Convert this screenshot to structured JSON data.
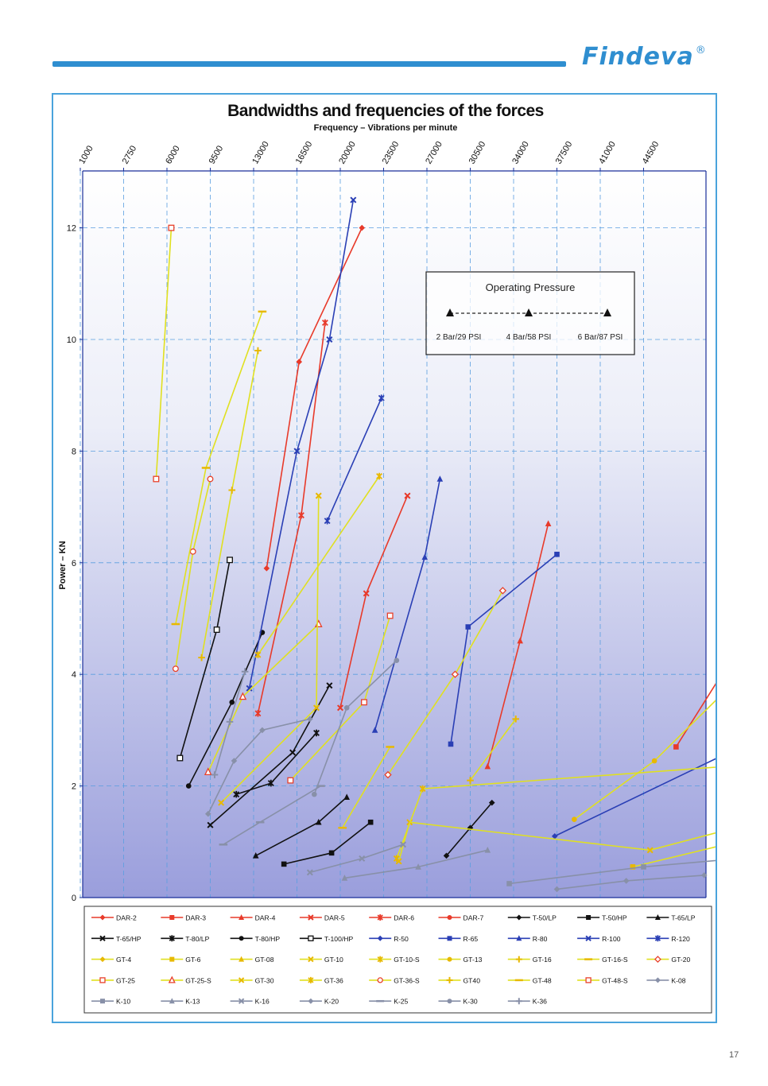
{
  "brand": {
    "name": "Findeva",
    "registered": "®"
  },
  "page_number": "17",
  "chart_data": {
    "type": "line",
    "title": "Bandwidths and frequencies of the forces",
    "xlabel": "Frequency – Vibrations per minute",
    "ylabel": "Power – KN",
    "x_ticks": [
      1000,
      2750,
      6000,
      9500,
      13000,
      16500,
      20000,
      23500,
      27000,
      30500,
      34000,
      37500,
      41000,
      44500
    ],
    "y_ticks": [
      0,
      2,
      4,
      6,
      8,
      10,
      12
    ],
    "ylim": [
      0,
      13
    ],
    "grid": true,
    "legend_position": "bottom",
    "inset_legend": {
      "title": "Operating Pressure",
      "labels": [
        "2 Bar/29 PSI",
        "4 Bar/58 PSI",
        "6 Bar/87 PSI"
      ]
    },
    "series": [
      {
        "name": "DAR-2",
        "color": "#e83a2a",
        "marker": "diamond",
        "points": [
          [
            4.3,
            5.9
          ],
          [
            5.05,
            9.6
          ],
          [
            6.5,
            12.0
          ]
        ]
      },
      {
        "name": "DAR-3",
        "color": "#e83a2a",
        "marker": "square",
        "points": [
          [
            13.75,
            2.7
          ],
          [
            15.25,
            4.55
          ],
          [
            15.45,
            6.05
          ]
        ]
      },
      {
        "name": "DAR-4",
        "color": "#e83a2a",
        "marker": "triangle",
        "points": [
          [
            9.4,
            2.35
          ],
          [
            10.15,
            4.6
          ],
          [
            10.8,
            6.7
          ]
        ]
      },
      {
        "name": "DAR-5",
        "color": "#e83a2a",
        "marker": "x",
        "points": [
          [
            6.0,
            3.4
          ],
          [
            6.6,
            5.45
          ],
          [
            7.55,
            7.2
          ]
        ]
      },
      {
        "name": "DAR-6",
        "color": "#e83a2a",
        "marker": "asterisk",
        "points": [
          [
            4.1,
            3.3
          ],
          [
            5.1,
            6.85
          ],
          [
            5.65,
            10.3
          ]
        ]
      },
      {
        "name": "DAR-7",
        "color": "#e83a2a",
        "marker": "dot",
        "points": [
          [
            17.15,
            2.25
          ],
          [
            17.7,
            3.4
          ],
          [
            17.8,
            4.1
          ]
        ]
      },
      {
        "name": "T-50/LP",
        "color": "#111111",
        "marker": "diamond",
        "points": [
          [
            8.45,
            0.75
          ],
          [
            9.0,
            1.25
          ],
          [
            9.5,
            1.7
          ]
        ]
      },
      {
        "name": "T-50/HP",
        "color": "#111111",
        "marker": "square",
        "points": [
          [
            4.7,
            0.6
          ],
          [
            5.8,
            0.8
          ],
          [
            6.7,
            1.35
          ]
        ]
      },
      {
        "name": "T-65/LP",
        "color": "#111111",
        "marker": "triangle",
        "points": [
          [
            4.05,
            0.75
          ],
          [
            5.5,
            1.35
          ],
          [
            6.15,
            1.8
          ]
        ]
      },
      {
        "name": "T-65/HP",
        "color": "#111111",
        "marker": "x",
        "points": [
          [
            3.0,
            1.3
          ],
          [
            4.9,
            2.6
          ],
          [
            5.75,
            3.8
          ]
        ]
      },
      {
        "name": "T-80/LP",
        "color": "#111111",
        "marker": "asterisk",
        "points": [
          [
            3.6,
            1.85
          ],
          [
            4.4,
            2.05
          ],
          [
            5.45,
            2.95
          ]
        ]
      },
      {
        "name": "T-80/HP",
        "color": "#111111",
        "marker": "dot",
        "points": [
          [
            2.5,
            2.0
          ],
          [
            3.5,
            3.5
          ],
          [
            4.2,
            4.75
          ]
        ]
      },
      {
        "name": "T-100/HP",
        "color": "#111111",
        "marker": "hollow-square",
        "points": [
          [
            2.3,
            2.5
          ],
          [
            3.15,
            4.8
          ],
          [
            3.45,
            6.05
          ]
        ]
      },
      {
        "name": "R-50",
        "color": "#2a3fb5",
        "marker": "diamond",
        "points": [
          [
            10.95,
            1.1
          ],
          [
            15.9,
            2.95
          ],
          [
            16.45,
            4.25
          ]
        ]
      },
      {
        "name": "R-65",
        "color": "#2a3fb5",
        "marker": "square",
        "points": [
          [
            8.55,
            2.75
          ],
          [
            8.95,
            4.85
          ],
          [
            11.0,
            6.15
          ]
        ]
      },
      {
        "name": "R-80",
        "color": "#2a3fb5",
        "marker": "triangle",
        "points": [
          [
            6.8,
            3.0
          ],
          [
            7.95,
            6.1
          ],
          [
            8.3,
            7.5
          ]
        ]
      },
      {
        "name": "R-100",
        "color": "#2a3fb5",
        "marker": "x",
        "points": [
          [
            3.9,
            3.75
          ],
          [
            5.0,
            8.0
          ],
          [
            5.75,
            10.0
          ],
          [
            6.3,
            12.5
          ]
        ]
      },
      {
        "name": "R-120",
        "color": "#2a3fb5",
        "marker": "asterisk",
        "points": [
          [
            5.7,
            6.75
          ],
          [
            6.95,
            8.95
          ]
        ]
      },
      {
        "name": "GT-4",
        "color": "#e0e020",
        "marker": "diamond",
        "points": [
          [
            15.75,
            0.55
          ],
          [
            19.55,
            1.15
          ]
        ]
      },
      {
        "name": "GT-6",
        "color": "#e0e020",
        "marker": "square",
        "points": [
          [
            12.75,
            0.55
          ],
          [
            15.95,
            1.15
          ],
          [
            17.4,
            1.5
          ]
        ]
      },
      {
        "name": "GT-08",
        "color": "#e0e020",
        "marker": "triangle",
        "points": [
          [
            15.95,
            0.95
          ],
          [
            18.5,
            2.1
          ],
          [
            19.95,
            2.95
          ]
        ]
      },
      {
        "name": "GT-10",
        "color": "#e0e020",
        "marker": "x",
        "points": [
          [
            7.35,
            0.65
          ],
          [
            7.6,
            1.35
          ],
          [
            13.15,
            0.85
          ],
          [
            15.85,
            1.4
          ]
        ]
      },
      {
        "name": "GT-10-S",
        "color": "#e0e020",
        "marker": "asterisk",
        "points": [
          [
            7.3,
            0.7
          ],
          [
            7.9,
            1.95
          ],
          [
            16.65,
            2.45
          ]
        ]
      },
      {
        "name": "GT-13",
        "color": "#e0e020",
        "marker": "dot",
        "points": [
          [
            11.4,
            1.4
          ],
          [
            13.25,
            2.45
          ],
          [
            14.95,
            3.75
          ]
        ]
      },
      {
        "name": "GT-16",
        "color": "#e0e020",
        "marker": "plus",
        "points": [
          [
            9.0,
            2.1
          ],
          [
            10.05,
            3.2
          ]
        ]
      },
      {
        "name": "GT-16-S",
        "color": "#e0e020",
        "marker": "dash",
        "points": [
          [
            6.05,
            1.25
          ],
          [
            7.15,
            2.7
          ]
        ]
      },
      {
        "name": "GT-20",
        "color": "#e0e020",
        "marker": "hollow-diamond",
        "points": [
          [
            7.1,
            2.2
          ],
          [
            8.65,
            4.0
          ],
          [
            9.75,
            5.5
          ]
        ]
      },
      {
        "name": "GT-25",
        "color": "#e0e020",
        "marker": "hollow-square",
        "points": [
          [
            4.85,
            2.1
          ],
          [
            6.55,
            3.5
          ],
          [
            7.15,
            5.05
          ]
        ]
      },
      {
        "name": "GT-25-S",
        "color": "#e0e020",
        "marker": "hollow-triangle",
        "points": [
          [
            2.95,
            2.25
          ],
          [
            3.75,
            3.6
          ],
          [
            5.5,
            4.9
          ]
        ]
      },
      {
        "name": "GT-30",
        "color": "#e0e020",
        "marker": "x",
        "points": [
          [
            3.25,
            1.7
          ],
          [
            5.45,
            3.4
          ],
          [
            5.5,
            7.2
          ]
        ]
      },
      {
        "name": "GT-36",
        "color": "#e0e020",
        "marker": "asterisk",
        "points": [
          [
            4.1,
            4.35
          ],
          [
            6.9,
            7.55
          ]
        ]
      },
      {
        "name": "GT-36-S",
        "color": "#e0e020",
        "marker": "hollow-circle",
        "points": [
          [
            2.2,
            4.1
          ],
          [
            2.6,
            6.2
          ],
          [
            3.0,
            7.5
          ]
        ]
      },
      {
        "name": "GT40",
        "color": "#e0e020",
        "marker": "plus",
        "points": [
          [
            2.8,
            4.3
          ],
          [
            3.5,
            7.3
          ],
          [
            4.1,
            9.8
          ]
        ]
      },
      {
        "name": "GT-48",
        "color": "#e0e020",
        "marker": "dash",
        "points": [
          [
            2.2,
            4.9
          ],
          [
            2.9,
            7.7
          ],
          [
            4.2,
            10.5
          ]
        ]
      },
      {
        "name": "GT-48-S",
        "color": "#e0e020",
        "marker": "hollow-square",
        "points": [
          [
            1.75,
            7.5
          ],
          [
            2.1,
            12.0
          ]
        ]
      },
      {
        "name": "K-08",
        "color": "#8890a8",
        "marker": "diamond",
        "points": [
          [
            11.0,
            0.15
          ],
          [
            12.6,
            0.3
          ],
          [
            14.4,
            0.4
          ]
        ]
      },
      {
        "name": "K-10",
        "color": "#8890a8",
        "marker": "square",
        "points": [
          [
            9.9,
            0.25
          ],
          [
            13.0,
            0.55
          ],
          [
            15.2,
            0.7
          ]
        ]
      },
      {
        "name": "K-13",
        "color": "#8890a8",
        "marker": "triangle",
        "points": [
          [
            6.1,
            0.35
          ],
          [
            7.8,
            0.55
          ],
          [
            9.4,
            0.85
          ]
        ]
      },
      {
        "name": "K-16",
        "color": "#8890a8",
        "marker": "x",
        "points": [
          [
            5.3,
            0.45
          ],
          [
            6.5,
            0.7
          ],
          [
            7.45,
            0.95
          ]
        ]
      },
      {
        "name": "K-20",
        "color": "#8890a8",
        "marker": "diamond",
        "points": [
          [
            2.95,
            1.5
          ],
          [
            3.55,
            2.45
          ],
          [
            4.2,
            3.0
          ],
          [
            5.3,
            3.2
          ]
        ]
      },
      {
        "name": "K-25",
        "color": "#8890a8",
        "marker": "dash",
        "points": [
          [
            3.3,
            0.95
          ],
          [
            4.15,
            1.35
          ],
          [
            5.55,
            2.0
          ]
        ]
      },
      {
        "name": "K-30",
        "color": "#8890a8",
        "marker": "dot",
        "points": [
          [
            5.4,
            1.85
          ],
          [
            6.15,
            3.4
          ],
          [
            7.3,
            4.25
          ]
        ]
      },
      {
        "name": "K-36",
        "color": "#8890a8",
        "marker": "plus",
        "points": [
          [
            3.1,
            2.2
          ],
          [
            3.45,
            3.15
          ],
          [
            3.8,
            4.05
          ]
        ]
      }
    ]
  }
}
